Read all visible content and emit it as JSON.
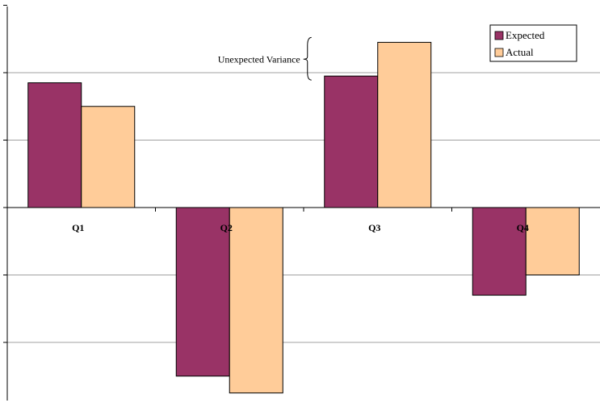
{
  "chart_data": {
    "type": "bar",
    "categories": [
      "Q1",
      "Q2",
      "Q3",
      "Q4"
    ],
    "series": [
      {
        "name": "Expected",
        "color": "#993366",
        "values": [
          1.85,
          -2.5,
          1.95,
          -1.3
        ]
      },
      {
        "name": "Actual",
        "color": "#FFCC99",
        "values": [
          1.5,
          -2.75,
          2.45,
          -1.0
        ]
      }
    ],
    "ylim": [
      -2.8,
      3.0
    ],
    "gridlines": [
      -2,
      -1,
      1,
      2
    ],
    "grid": true,
    "legend_position": "top-right",
    "annotation": {
      "text": "Unexpected Variance",
      "category": "Q3"
    },
    "title": "",
    "xlabel": "",
    "ylabel": ""
  }
}
